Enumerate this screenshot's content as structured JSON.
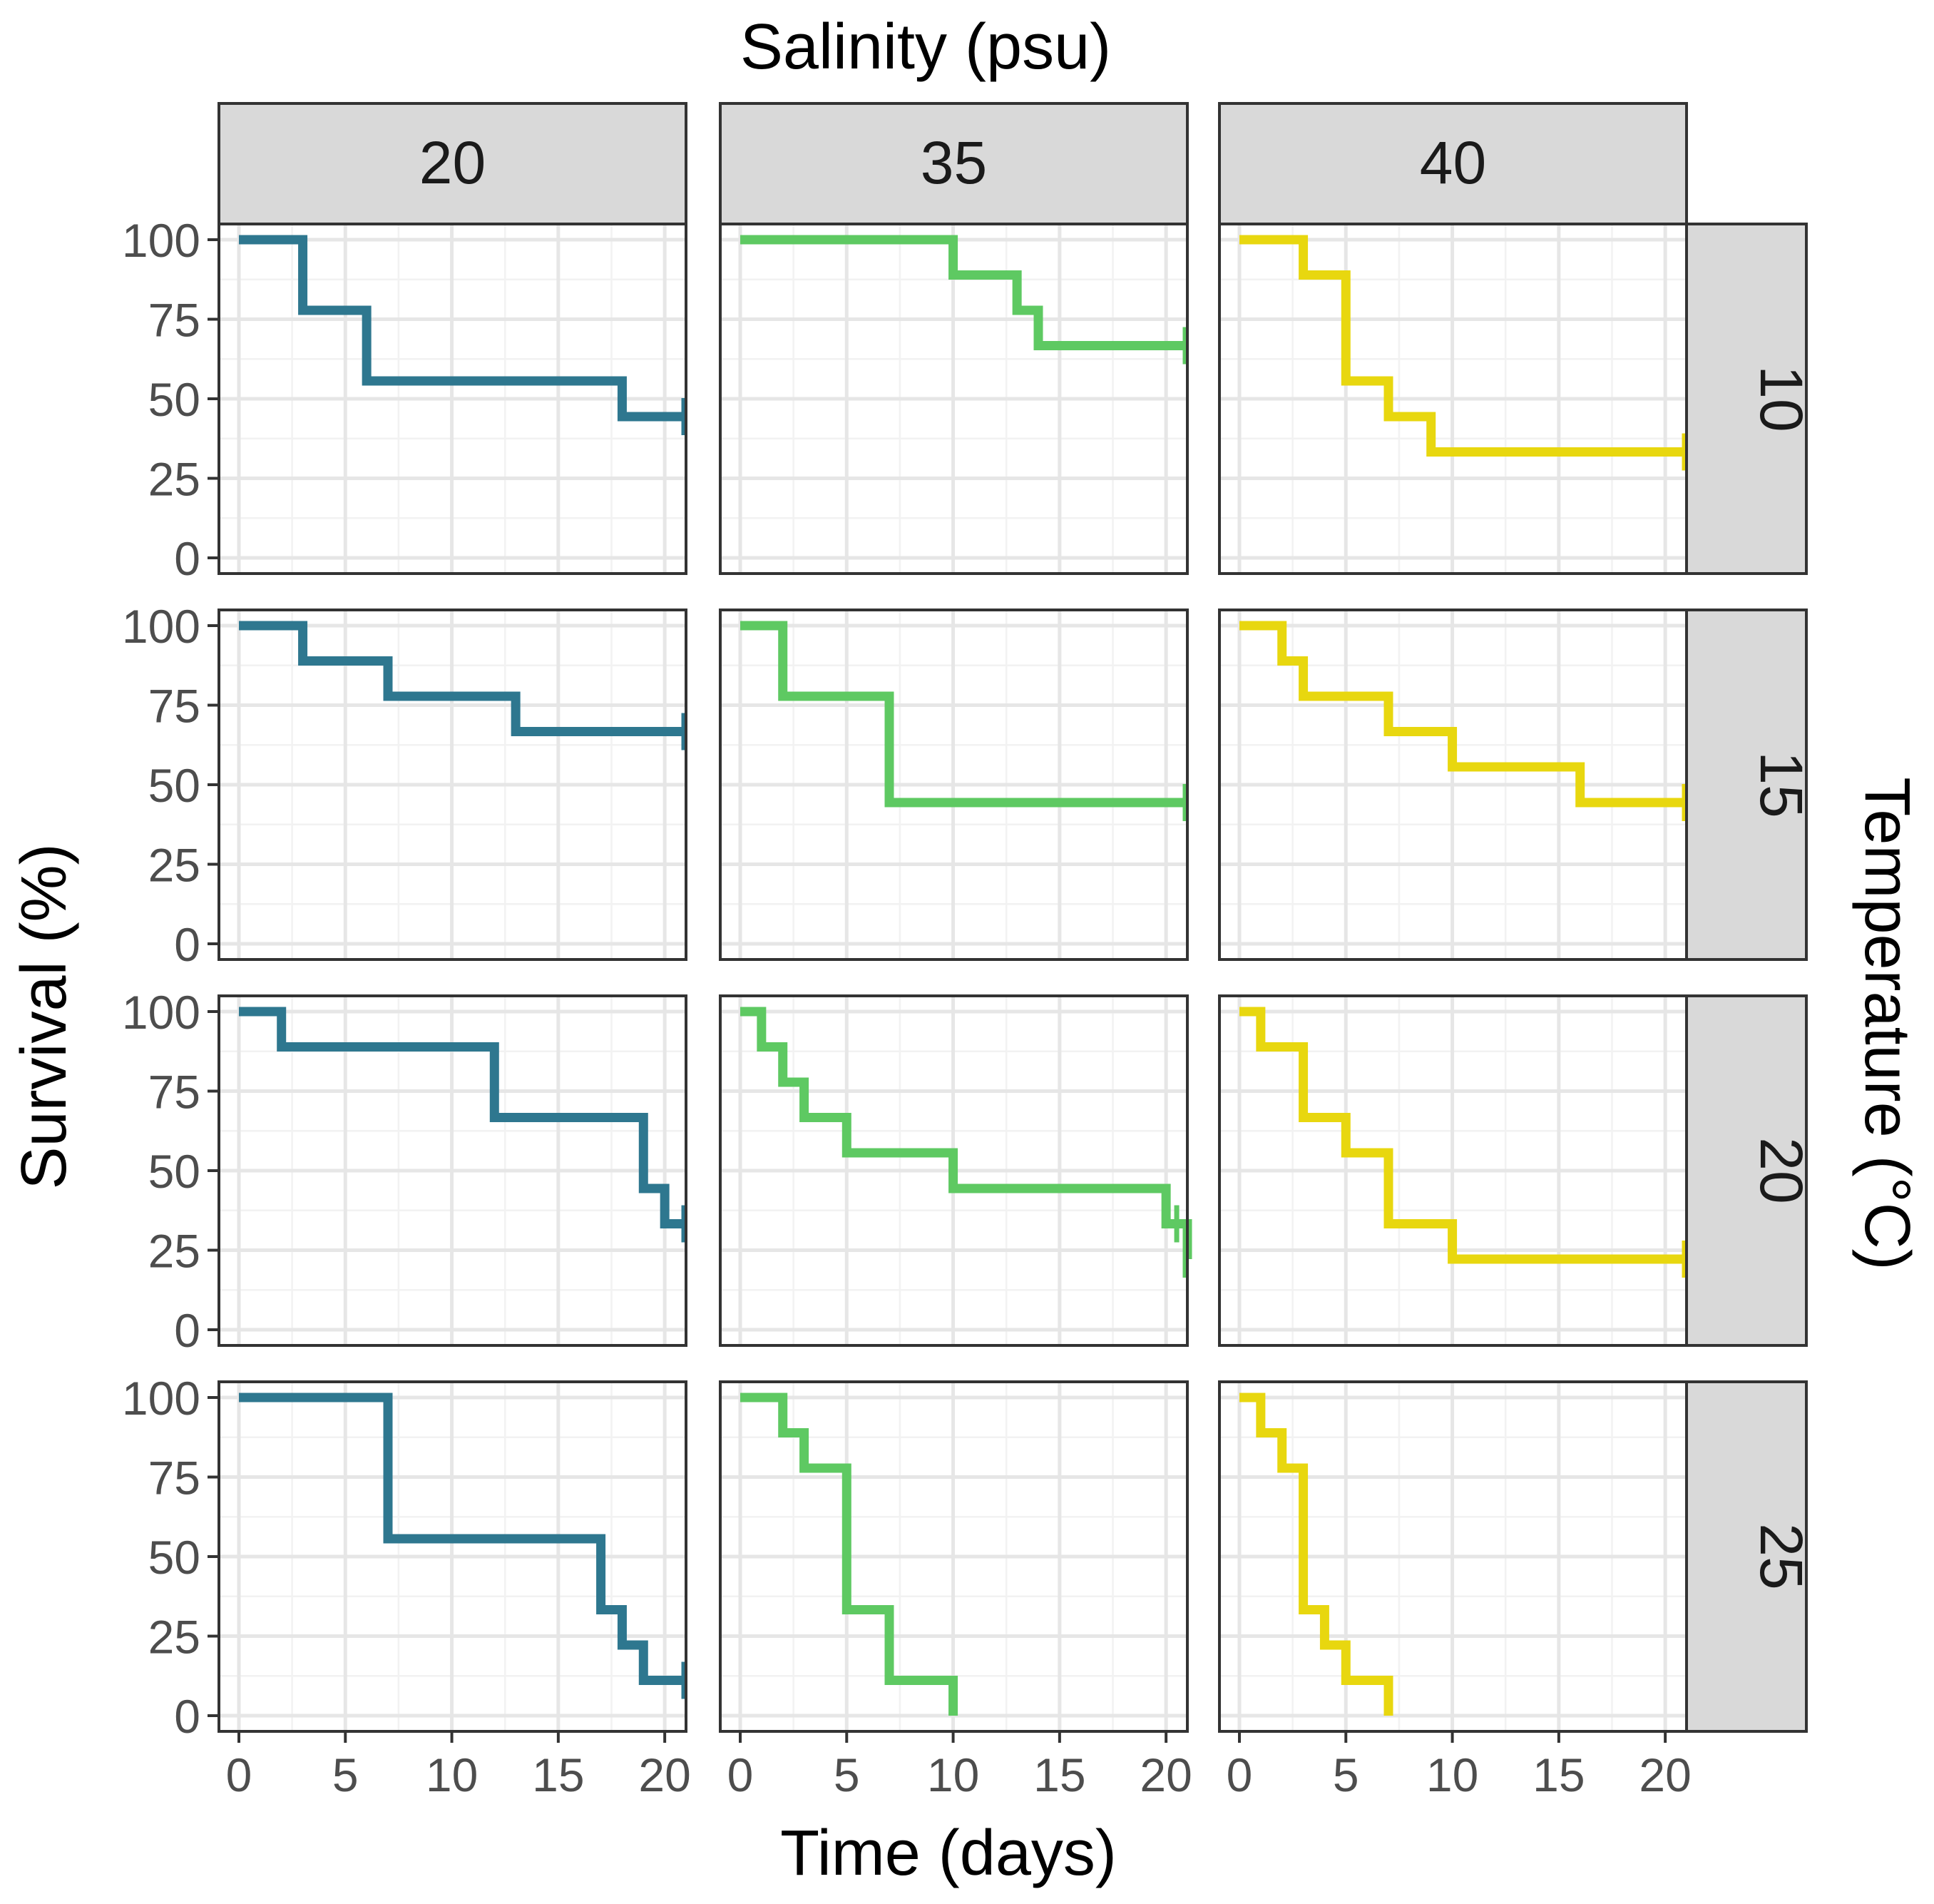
{
  "chart_data": {
    "type": "line",
    "subtype": "step (Kaplan-Meier survival) facet grid",
    "top_title": "Salinity (psu)",
    "right_title": "Temperature (°C)",
    "xlabel": "Time (days)",
    "ylabel": "Survival (%)",
    "xlim": [
      0,
      21
    ],
    "ylim": [
      0,
      100
    ],
    "x_ticks": [
      "0",
      "5",
      "10",
      "15",
      "20"
    ],
    "y_ticks": [
      "0",
      "25",
      "50",
      "75",
      "100"
    ],
    "x_tick_values": [
      0,
      5,
      10,
      15,
      20
    ],
    "y_tick_values": [
      0,
      25,
      50,
      75,
      100
    ],
    "columns": [
      {
        "label": "20",
        "color": "#2e778f"
      },
      {
        "label": "35",
        "color": "#5ec962"
      },
      {
        "label": "40",
        "color": "#e8d70f"
      }
    ],
    "rows": [
      {
        "label": "10"
      },
      {
        "label": "15"
      },
      {
        "label": "20"
      },
      {
        "label": "25"
      }
    ],
    "panels": [
      {
        "row": 0,
        "col": 0,
        "x": [
          0,
          3,
          6,
          18,
          21
        ],
        "y": [
          100,
          77.8,
          55.6,
          44.4,
          44.4
        ],
        "censor": [
          21
        ]
      },
      {
        "row": 0,
        "col": 1,
        "x": [
          0,
          10,
          13,
          14,
          21
        ],
        "y": [
          100,
          88.9,
          77.8,
          66.7,
          66.7
        ],
        "censor": [
          21
        ]
      },
      {
        "row": 0,
        "col": 2,
        "x": [
          0,
          3,
          5,
          7,
          9,
          21
        ],
        "y": [
          100,
          88.9,
          55.6,
          44.4,
          33.3,
          33.3
        ],
        "censor": [
          21
        ]
      },
      {
        "row": 1,
        "col": 0,
        "x": [
          0,
          3,
          7,
          13,
          21
        ],
        "y": [
          100,
          88.9,
          77.8,
          66.7,
          66.7
        ],
        "censor": [
          21
        ]
      },
      {
        "row": 1,
        "col": 1,
        "x": [
          0,
          2,
          7,
          21
        ],
        "y": [
          100,
          77.8,
          44.4,
          44.4
        ],
        "censor": [
          21
        ]
      },
      {
        "row": 1,
        "col": 2,
        "x": [
          0,
          2,
          3,
          7,
          10,
          16,
          21
        ],
        "y": [
          100,
          88.9,
          77.8,
          66.7,
          55.6,
          44.4,
          44.4
        ],
        "censor": [
          21
        ]
      },
      {
        "row": 2,
        "col": 0,
        "x": [
          0,
          2,
          12,
          19,
          20,
          21
        ],
        "y": [
          100,
          88.9,
          66.7,
          44.4,
          33.3,
          33.3
        ],
        "censor": [
          21
        ]
      },
      {
        "row": 2,
        "col": 1,
        "x": [
          0,
          1,
          2,
          3,
          5,
          10,
          20,
          21
        ],
        "y": [
          100,
          88.9,
          77.8,
          66.7,
          55.6,
          44.4,
          33.3,
          22.2
        ],
        "censor": [
          20.5,
          21
        ]
      },
      {
        "row": 2,
        "col": 2,
        "x": [
          0,
          1,
          3,
          5,
          7,
          10,
          21
        ],
        "y": [
          100,
          88.9,
          66.7,
          55.6,
          33.3,
          22.2,
          22.2
        ],
        "censor": [
          21
        ]
      },
      {
        "row": 3,
        "col": 0,
        "x": [
          0,
          7,
          17,
          18,
          19,
          21
        ],
        "y": [
          100,
          55.6,
          33.3,
          22.2,
          11.1,
          11.1
        ],
        "censor": [
          21
        ]
      },
      {
        "row": 3,
        "col": 1,
        "x": [
          0,
          2,
          3,
          5,
          7,
          10
        ],
        "y": [
          100,
          88.9,
          77.8,
          33.3,
          11.1,
          0
        ]
      },
      {
        "row": 3,
        "col": 2,
        "x": [
          0,
          1,
          2,
          3,
          4,
          5,
          7
        ],
        "y": [
          100,
          88.9,
          77.8,
          33.3,
          22.2,
          11.1,
          0
        ]
      }
    ]
  }
}
